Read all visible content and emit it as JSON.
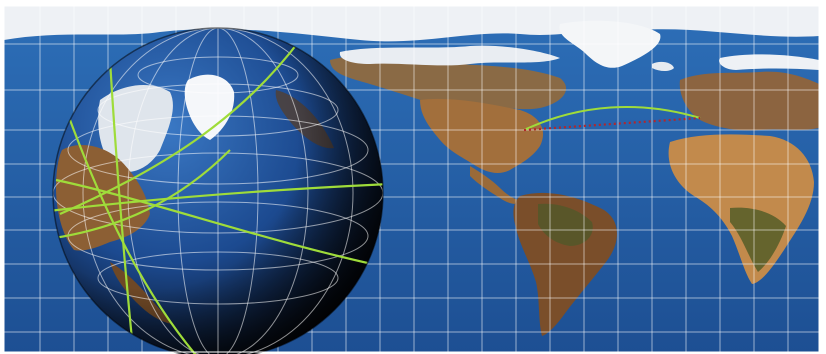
{
  "figure": {
    "kind": "world-map-with-globe-inset",
    "text_labels": [],
    "colors": {
      "ocean": "#1f5fa8",
      "ocean_deep": "#163f7e",
      "land": "#9c6a3a",
      "ice": "#f2f4f7",
      "grid": "#ffffff",
      "route_great_circle": "#9fdc3a",
      "route_rhumb": "#b3262b",
      "globe_dark": "#0b0d14"
    }
  }
}
